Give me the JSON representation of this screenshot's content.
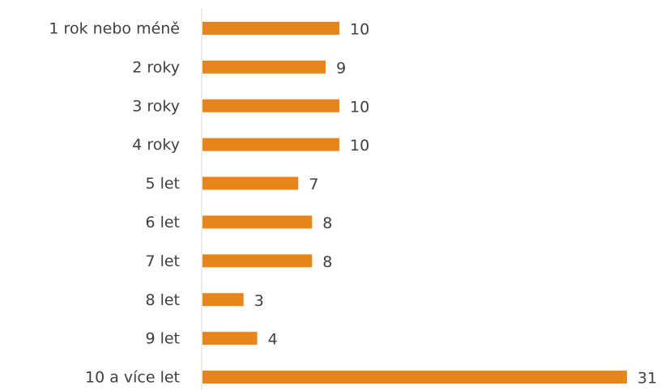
{
  "chart_data": {
    "type": "bar",
    "orientation": "horizontal",
    "categories": [
      "1 rok nebo méně",
      "2 roky",
      "3 roky",
      "4 roky",
      "5 let",
      "6 let",
      "7 let",
      "8 let",
      "9 let",
      "10 a více let"
    ],
    "values": [
      10,
      9,
      10,
      10,
      7,
      8,
      8,
      3,
      4,
      31
    ],
    "color": "#e8851a"
  }
}
